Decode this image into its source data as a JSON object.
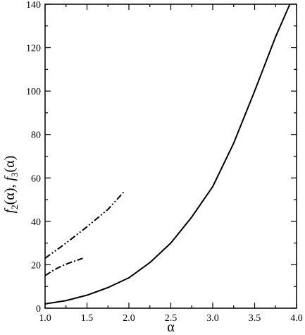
{
  "chart_data": {
    "type": "line",
    "xlabel": "α",
    "ylabel_parts": [
      {
        "text": "f",
        "style": "italic"
      },
      {
        "text": "2",
        "style": "sub"
      },
      {
        "text": "(α), ",
        "style": "normal"
      },
      {
        "text": "f",
        "style": "italic"
      },
      {
        "text": "3",
        "style": "sub"
      },
      {
        "text": "(α)",
        "style": "normal"
      }
    ],
    "xlim": [
      1.0,
      4.0
    ],
    "ylim": [
      0,
      140
    ],
    "xticks": [
      1.0,
      1.5,
      2.0,
      2.5,
      3.0,
      3.5,
      4.0
    ],
    "xtick_labels": [
      "1.0",
      "1.5",
      "2.0",
      "2.5",
      "3.0",
      "3.5",
      "4.0"
    ],
    "yticks": [
      0,
      20,
      40,
      60,
      80,
      100,
      120,
      140
    ],
    "ytick_labels": [
      "0",
      "20",
      "40",
      "60",
      "80",
      "100",
      "120",
      "140"
    ],
    "grid": false,
    "series": [
      {
        "style": "solid",
        "x": [
          1.0,
          1.25,
          1.5,
          1.75,
          2.0,
          2.25,
          2.5,
          2.75,
          3.0,
          3.25,
          3.5,
          3.75,
          3.92
        ],
        "y": [
          2,
          3.5,
          6,
          9.5,
          14,
          21,
          30,
          42,
          56,
          76,
          100,
          125,
          140
        ]
      },
      {
        "style": "dash-dot-dot",
        "x": [
          1.0,
          1.25,
          1.5,
          1.75,
          1.95
        ],
        "y": [
          23,
          30,
          37.5,
          45.5,
          54
        ]
      },
      {
        "style": "dash-dot",
        "x": [
          1.0,
          1.1,
          1.2,
          1.3,
          1.45
        ],
        "y": [
          15,
          17.5,
          19.5,
          21,
          23
        ]
      }
    ]
  }
}
